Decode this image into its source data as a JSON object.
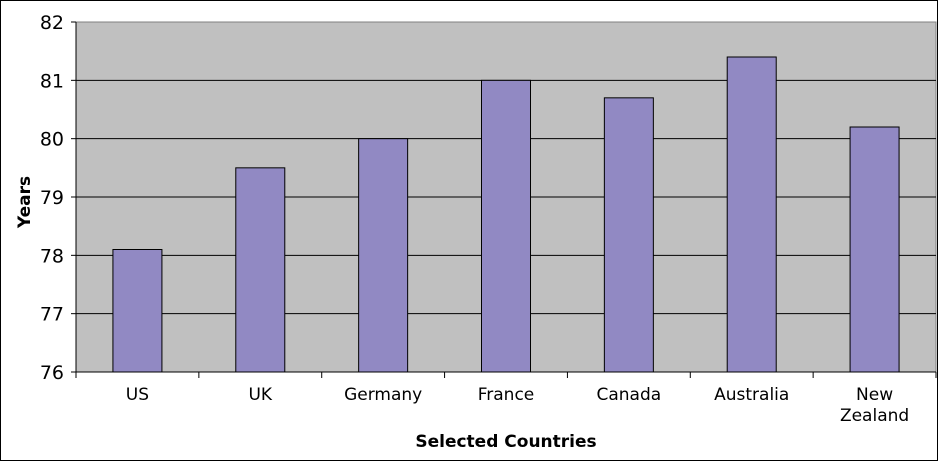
{
  "chart_data": {
    "type": "bar",
    "title": "",
    "xlabel": "Selected Countries",
    "ylabel": "Years",
    "categories": [
      "US",
      "UK",
      "Germany",
      "France",
      "Canada",
      "Australia",
      "New Zealand"
    ],
    "category_lines": [
      [
        "US"
      ],
      [
        "UK"
      ],
      [
        "Germany"
      ],
      [
        "France"
      ],
      [
        "Canada"
      ],
      [
        "Australia"
      ],
      [
        "New",
        "Zealand"
      ]
    ],
    "values": [
      78.1,
      79.5,
      80.0,
      81.0,
      80.7,
      81.4,
      80.2
    ],
    "ylim": [
      76,
      82
    ],
    "yticks": [
      76,
      77,
      78,
      79,
      80,
      81,
      82
    ],
    "grid": true,
    "legend": "none",
    "colors": {
      "bar": "#9189C3",
      "plot_bg": "#C0C0C0",
      "grid": "#808080"
    }
  }
}
